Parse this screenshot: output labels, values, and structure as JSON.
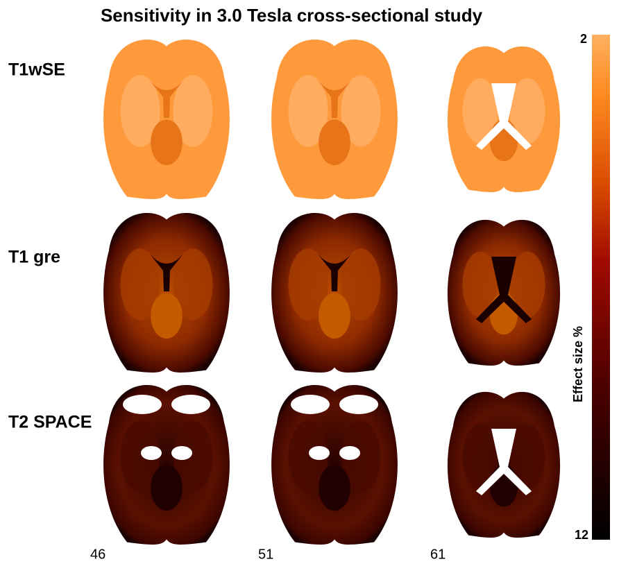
{
  "title": "Sensitivity in  3.0 Tesla cross-sectional study",
  "rows": [
    "T1wSE",
    "T1 gre",
    "T2 SPACE"
  ],
  "columns": [
    "46",
    "51",
    "61"
  ],
  "colorbar": {
    "label": "Effect size %",
    "top": "2",
    "bottom": "12"
  }
}
